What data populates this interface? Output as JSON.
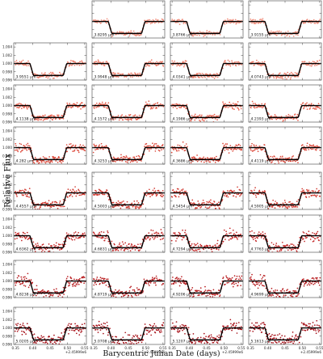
{
  "chart_data": {
    "type": "scatter",
    "xlabel": "Barycentric Julian Date (days)",
    "ylabel": "Relative Flux",
    "xlim": [
      0.345,
      0.555
    ],
    "ylim": [
      0.996,
      1.005
    ],
    "x_ticks": [
      "0.35",
      "0.40",
      "0.45",
      "0.50",
      "0.55"
    ],
    "x_offset_label": "+2.45999e6",
    "y_ticks": [
      "0.996",
      "0.998",
      "1.000",
      "1.002",
      "1.004"
    ],
    "transit": {
      "ingress": [
        0.392,
        0.402
      ],
      "egress": [
        0.488,
        0.498
      ],
      "depth": 0.0029
    },
    "panels": [
      {
        "label": "3.8295 μm",
        "row": 0,
        "col": 1
      },
      {
        "label": "3.8766 μm",
        "row": 0,
        "col": 2
      },
      {
        "label": "3.9155 μm",
        "row": 0,
        "col": 3
      },
      {
        "label": "3.9551 μm",
        "row": 1,
        "col": 0
      },
      {
        "label": "3.9948 μm",
        "row": 1,
        "col": 1
      },
      {
        "label": "4.0341 μm",
        "row": 1,
        "col": 2
      },
      {
        "label": "4.0743 μm",
        "row": 1,
        "col": 3
      },
      {
        "label": "4.1138 μm",
        "row": 2,
        "col": 0
      },
      {
        "label": "4.1572 μm",
        "row": 2,
        "col": 1
      },
      {
        "label": "4.1986 μm",
        "row": 2,
        "col": 2
      },
      {
        "label": "4.2393 μm",
        "row": 2,
        "col": 3
      },
      {
        "label": "4.282 μm",
        "row": 3,
        "col": 0
      },
      {
        "label": "4.3253 μm",
        "row": 3,
        "col": 1
      },
      {
        "label": "4.3686 μm",
        "row": 3,
        "col": 2
      },
      {
        "label": "4.4119 μm",
        "row": 3,
        "col": 3
      },
      {
        "label": "4.4557 μm",
        "row": 4,
        "col": 0
      },
      {
        "label": "4.5003 μm",
        "row": 4,
        "col": 1
      },
      {
        "label": "4.5454 μm",
        "row": 4,
        "col": 2
      },
      {
        "label": "4.5905 μm",
        "row": 4,
        "col": 3
      },
      {
        "label": "4.6362 μm",
        "row": 5,
        "col": 0
      },
      {
        "label": "4.6831 μm",
        "row": 5,
        "col": 1
      },
      {
        "label": "4.7294 μm",
        "row": 5,
        "col": 2
      },
      {
        "label": "4.7763 μm",
        "row": 5,
        "col": 3
      },
      {
        "label": "4.8238 μm",
        "row": 6,
        "col": 0
      },
      {
        "label": "4.8719 μm",
        "row": 6,
        "col": 1
      },
      {
        "label": "4.9206 μm",
        "row": 6,
        "col": 2
      },
      {
        "label": "4.9699 μm",
        "row": 6,
        "col": 3
      },
      {
        "label": "5.0205 μm",
        "row": 7,
        "col": 0
      },
      {
        "label": "5.0708 μm",
        "row": 7,
        "col": 1
      },
      {
        "label": "5.1207 μm",
        "row": 7,
        "col": 2
      },
      {
        "label": "5.1613 μm",
        "row": 7,
        "col": 3
      }
    ],
    "point_colors": [
      "#f08a78",
      "#ee7d6a",
      "#e8604e",
      "#dd4a3c",
      "#d23b32",
      "#c52a2a",
      "#b81f22",
      "#a8121a"
    ],
    "model_color": "#000000",
    "grid": false
  }
}
